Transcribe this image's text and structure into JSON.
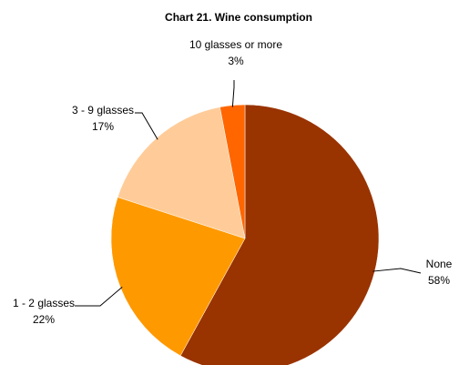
{
  "chart_data": {
    "type": "pie",
    "title": "Chart 21. Wine consumption",
    "categories": [
      "None",
      "1 - 2 glasses",
      "3 - 9 glasses",
      "10 glasses or more"
    ],
    "values": [
      58,
      22,
      17,
      3
    ],
    "value_labels": [
      "58%",
      "22%",
      "17%",
      "3%"
    ],
    "colors": [
      "#993300",
      "#FF9900",
      "#FFCC99",
      "#FF6600"
    ]
  }
}
